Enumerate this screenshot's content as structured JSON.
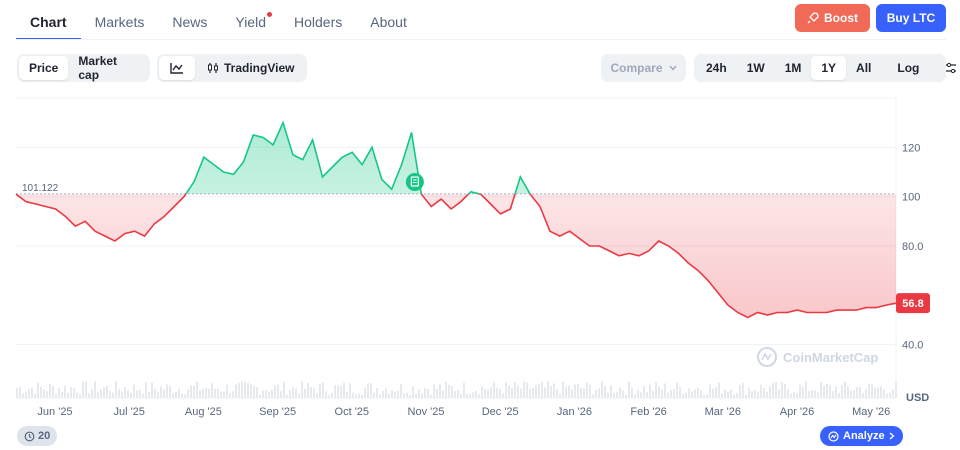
{
  "tabs": [
    {
      "label": "Chart",
      "active": true
    },
    {
      "label": "Markets"
    },
    {
      "label": "News"
    },
    {
      "label": "Yield",
      "dot": true
    },
    {
      "label": "Holders"
    },
    {
      "label": "About"
    }
  ],
  "actions": {
    "boost": "Boost",
    "buy": "Buy LTC"
  },
  "view_toggle": {
    "price": "Price",
    "market_cap": "Market cap"
  },
  "chart_style": {
    "tradingview": "TradingView",
    "line_icon": "line-chart-icon",
    "tv_icon": "candles-icon"
  },
  "compare_label": "Compare",
  "ranges": [
    "24h",
    "1W",
    "1M",
    "1Y",
    "All"
  ],
  "selected_range": "1Y",
  "log_label": "Log",
  "settings_icon": "sliders-icon",
  "watermark": "CoinMarketCap",
  "history_badge": "20",
  "analyze_label": "Analyze",
  "colors": {
    "up": "#16c784",
    "down": "#ea3943",
    "accent": "#3861fb"
  },
  "chart_data": {
    "type": "line",
    "baseline": 101.122,
    "baseline_label": "101.122",
    "current_value": 56.8,
    "current_label": "56.8",
    "y_ticks": [
      {
        "value": 120,
        "label": "120"
      },
      {
        "value": 100,
        "label": "100"
      },
      {
        "value": 80,
        "label": "80.0"
      },
      {
        "value": 40,
        "label": "40.0"
      }
    ],
    "y_unit": "USD",
    "ylim": [
      37,
      140
    ],
    "x_ticks": [
      "Jun '25",
      "Jul '25",
      "Aug '25",
      "Sep '25",
      "Oct '25",
      "Nov '25",
      "Dec '25",
      "Jan '26",
      "Feb '26",
      "Mar '26",
      "Apr '26",
      "May '26"
    ],
    "event_marker_month_index": 4.85,
    "series": [
      {
        "values": [
          101,
          98,
          97,
          96,
          95,
          92,
          88,
          90,
          86,
          84,
          82,
          85,
          86,
          84,
          89,
          92,
          96,
          100,
          106,
          116,
          113,
          110,
          109,
          114,
          125,
          124,
          121,
          130,
          117,
          115,
          123,
          108,
          112,
          116,
          118,
          113,
          120,
          107,
          103,
          113,
          126,
          101,
          96,
          99,
          95,
          98,
          102,
          101,
          97,
          93,
          95,
          108,
          101,
          96,
          86,
          84,
          86,
          83,
          80,
          80,
          78,
          76,
          77,
          76,
          78,
          82,
          80,
          77,
          73,
          70,
          66,
          61,
          56,
          53,
          51,
          53,
          52,
          53,
          53,
          54,
          53,
          53,
          53,
          54,
          54,
          54,
          55,
          55,
          56,
          56.8
        ]
      }
    ]
  }
}
